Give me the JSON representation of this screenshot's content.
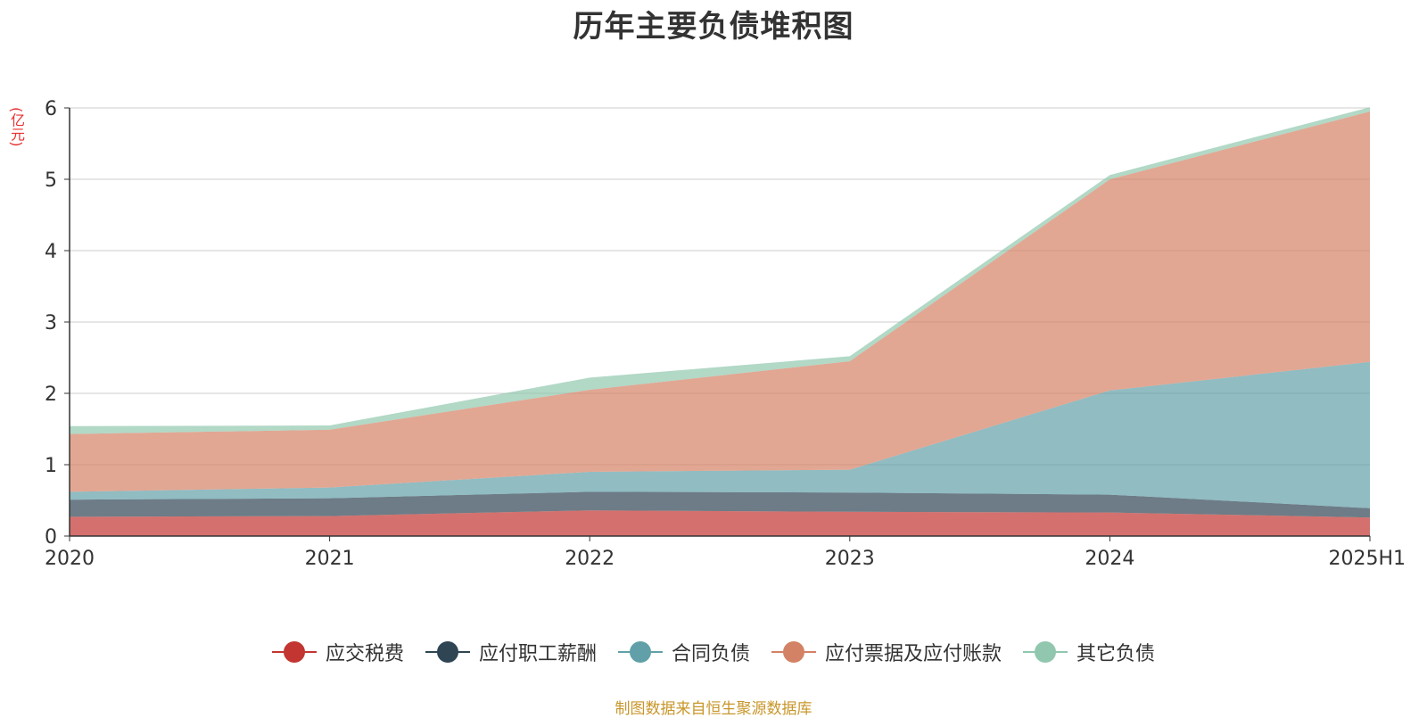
{
  "chart_data": {
    "type": "area",
    "stacked": true,
    "title": "历年主要负债堆积图",
    "unit_label": "(亿元)",
    "x": [
      "2020",
      "2021",
      "2022",
      "2023",
      "2024",
      "2025H1"
    ],
    "ylim": [
      0,
      6
    ],
    "yticks": [
      "0",
      "1",
      "2",
      "3",
      "4",
      "5",
      "6"
    ],
    "grid": true,
    "legend_position": "bottom",
    "series": [
      {
        "name": "应交税费",
        "color": "#c23531",
        "values": [
          0.27,
          0.28,
          0.36,
          0.34,
          0.33,
          0.26
        ]
      },
      {
        "name": "应付职工薪酬",
        "color": "#2f4554",
        "values": [
          0.24,
          0.25,
          0.26,
          0.27,
          0.25,
          0.13
        ]
      },
      {
        "name": "合同负债",
        "color": "#61a0a8",
        "values": [
          0.11,
          0.15,
          0.28,
          0.32,
          1.46,
          2.05
        ]
      },
      {
        "name": "应付票据及应付账款",
        "color": "#d48265",
        "values": [
          0.81,
          0.81,
          1.15,
          1.52,
          2.96,
          3.51
        ]
      },
      {
        "name": "其它负债",
        "color": "#91c7ae",
        "values": [
          0.11,
          0.06,
          0.17,
          0.07,
          0.06,
          0.06
        ]
      }
    ]
  },
  "source_note": "制图数据来自恒生聚源数据库"
}
